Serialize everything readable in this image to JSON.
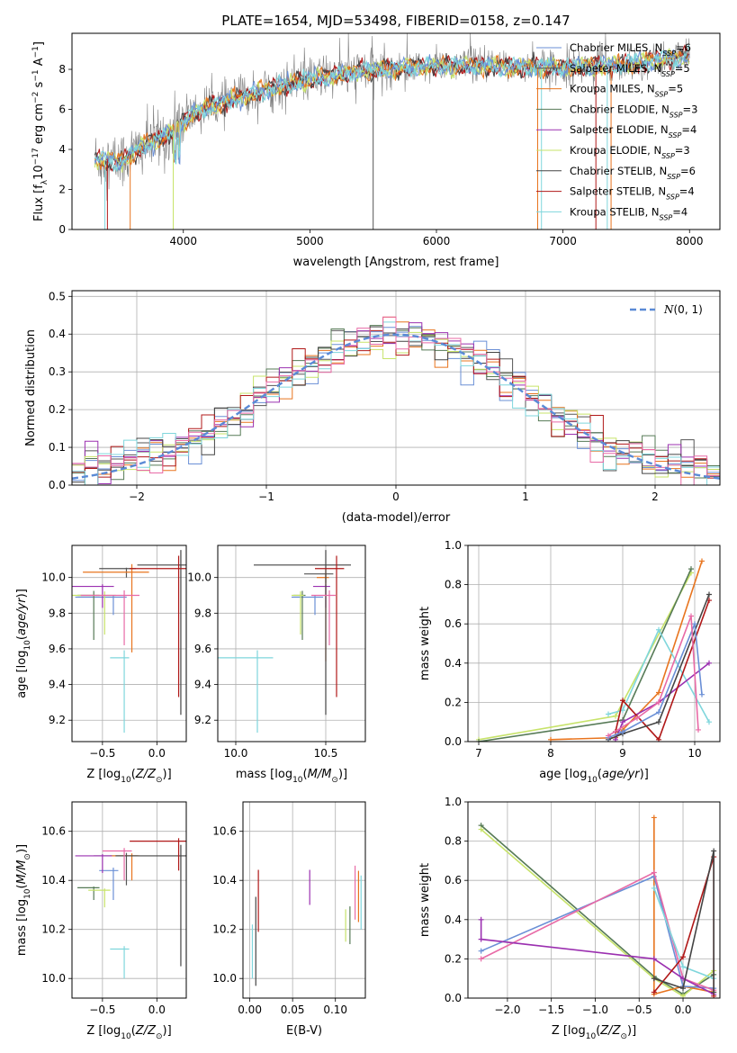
{
  "figure": {
    "title": "PLATE=1654, MJD=53498, FIBERID=0158, z=0.147"
  },
  "colors": {
    "Chabrier MILES": "#6a8fd6",
    "Salpeter MILES": "#555555",
    "Kroupa MILES": "#e8741e",
    "Chabrier ELODIE": "#567a56",
    "Salpeter ELODIE": "#9b30b0",
    "Kroupa ELODIE": "#c7e36a",
    "Chabrier STELIB": "#444444",
    "Salpeter STELIB": "#b01818",
    "Kroupa STELIB": "#7fd6dc",
    "Pink": "#e86aa6",
    "Gauss": "#5a8ad6"
  },
  "chart_data": [
    {
      "id": "spectrum",
      "type": "line",
      "xlabel": "wavelength [Angstrom, rest frame]",
      "ylabel": "Flux [f_λ 10^-17 erg cm^-2 s^-1 A^-1]",
      "xlim": [
        3120,
        8240
      ],
      "ylim": [
        0,
        9.8
      ],
      "xticks": [
        4000,
        5000,
        6000,
        7000,
        8000
      ],
      "yticks": [
        0,
        2,
        4,
        6,
        8
      ],
      "legend_position": "upper-right",
      "legend": [
        {
          "name": "Chabrier MILES, N_SSP=6"
        },
        {
          "name": "Salpeter MILES, N_SSP=5"
        },
        {
          "name": "Kroupa MILES, N_SSP=5"
        },
        {
          "name": "Chabrier ELODIE, N_SSP=3"
        },
        {
          "name": "Salpeter ELODIE, N_SSP=4"
        },
        {
          "name": "Kroupa ELODIE, N_SSP=3"
        },
        {
          "name": "Chabrier STELIB, N_SSP=6"
        },
        {
          "name": "Salpeter STELIB, N_SSP=4"
        },
        {
          "name": "Kroupa STELIB, N_SSP=4"
        }
      ],
      "model_trend": {
        "x": [
          3300,
          3500,
          3700,
          3900,
          4100,
          4300,
          4600,
          5000,
          5400,
          5800,
          6200,
          6600,
          7000,
          7400,
          7800,
          8000
        ],
        "y": [
          3.5,
          3.4,
          4.2,
          4.8,
          5.9,
          6.3,
          6.9,
          7.5,
          7.9,
          8.1,
          8.2,
          8.1,
          8.1,
          8.2,
          8.5,
          8.6
        ]
      }
    },
    {
      "id": "residuals",
      "type": "histogram",
      "xlabel": "(data-model)/error",
      "ylabel": "Normed distribution",
      "xlim": [
        -2.5,
        2.5
      ],
      "ylim": [
        0,
        0.515
      ],
      "xticks": [
        -2,
        -1,
        0,
        1,
        2
      ],
      "yticks": [
        0.0,
        0.1,
        0.2,
        0.3,
        0.4,
        0.5
      ],
      "grid": true,
      "legend": [
        {
          "name": "N(0,1)"
        }
      ],
      "legend_position": "upper-right"
    },
    {
      "id": "age-vs-Z",
      "type": "errorbar",
      "xlabel": "Z [log10(Z/Z_sun)]",
      "ylabel": "age  [log10(age/yr)]",
      "xlim": [
        -0.78,
        0.27
      ],
      "ylim": [
        9.08,
        10.18
      ],
      "xticks": [
        -0.5,
        0.0
      ],
      "yticks": [
        9.2,
        9.4,
        9.6,
        9.8,
        10.0
      ],
      "grid": true,
      "points": [
        {
          "series": "Chabrier MILES",
          "x": -0.4,
          "xerr": 0.35,
          "y": 9.89,
          "yerr": 0.1
        },
        {
          "series": "Salpeter MILES",
          "x": -0.28,
          "xerr": 0.25,
          "y": 10.05,
          "yerr": 0.05
        },
        {
          "series": "Kroupa MILES",
          "x": -0.23,
          "xerr": 0.45,
          "y": 10.03,
          "yerr": 0.45
        },
        {
          "series": "Chabrier ELODIE",
          "x": -0.58,
          "xerr": 0.15,
          "y": 9.9,
          "yerr": 0.25
        },
        {
          "series": "Salpeter ELODIE",
          "x": -0.5,
          "xerr": 0.3,
          "y": 9.95,
          "yerr": 0.12
        },
        {
          "series": "Kroupa ELODIE",
          "x": -0.48,
          "xerr": 0.3,
          "y": 9.9,
          "yerr": 0.22
        },
        {
          "series": "Chabrier STELIB",
          "x": 0.22,
          "xerr": 0.4,
          "y": 10.07,
          "yerr": 0.84
        },
        {
          "series": "Salpeter STELIB",
          "x": 0.2,
          "xerr": 0.45,
          "y": 10.05,
          "yerr": 0.72
        },
        {
          "series": "Kroupa STELIB",
          "x": -0.3,
          "xerr": 0.13,
          "y": 9.55,
          "yerr": 0.42
        },
        {
          "series": "Pink",
          "x": -0.3,
          "xerr": 0.4,
          "y": 9.9,
          "yerr": 0.28
        }
      ]
    },
    {
      "id": "age-vs-mass",
      "type": "errorbar",
      "xlabel": "mass [log10(M/M_sun)]",
      "ylabel": "",
      "xlim": [
        9.9,
        10.72
      ],
      "ylim": [
        9.08,
        10.18
      ],
      "xticks": [
        10.0,
        10.5
      ],
      "yticks": [
        9.2,
        9.4,
        9.6,
        9.8,
        10.0
      ],
      "grid": true,
      "points": [
        {
          "series": "Chabrier MILES",
          "x": 10.44,
          "xerr": 0.13,
          "y": 9.89,
          "yerr": 0.1
        },
        {
          "series": "Salpeter MILES",
          "x": 10.5,
          "xerr": 0.12,
          "y": 10.02,
          "yerr": 0.05
        },
        {
          "series": "Kroupa MILES",
          "x": 10.5,
          "xerr": 0.05,
          "y": 10.0,
          "yerr": 0.47
        },
        {
          "series": "Chabrier ELODIE",
          "x": 10.37,
          "xerr": 0.05,
          "y": 9.9,
          "yerr": 0.25
        },
        {
          "series": "Salpeter ELODIE",
          "x": 10.5,
          "xerr": 0.07,
          "y": 9.95,
          "yerr": 0.12
        },
        {
          "series": "Kroupa ELODIE",
          "x": 10.36,
          "xerr": 0.05,
          "y": 9.9,
          "yerr": 0.22
        },
        {
          "series": "Chabrier STELIB",
          "x": 10.5,
          "xerr": 0.4,
          "y": 10.07,
          "yerr": 0.84
        },
        {
          "series": "Salpeter STELIB",
          "x": 10.56,
          "xerr": 0.12,
          "y": 10.05,
          "yerr": 0.72
        },
        {
          "series": "Kroupa STELIB",
          "x": 10.12,
          "xerr": 0.25,
          "y": 9.55,
          "yerr": 0.42
        },
        {
          "series": "Pink",
          "x": 10.52,
          "xerr": 0.1,
          "y": 9.9,
          "yerr": 0.28
        }
      ]
    },
    {
      "id": "massweight-vs-age",
      "type": "line",
      "xlabel": "age  [log10(age/yr)]",
      "ylabel": "mass weight",
      "xlim": [
        6.85,
        10.35
      ],
      "ylim": [
        0,
        1.0
      ],
      "xticks": [
        7,
        8,
        9,
        10
      ],
      "yticks": [
        0.0,
        0.2,
        0.4,
        0.6,
        0.8,
        1.0
      ],
      "grid": true,
      "series": [
        {
          "series": "Kroupa ELODIE",
          "x": [
            7.0,
            8.9,
            9.95
          ],
          "y": [
            0.01,
            0.13,
            0.86
          ]
        },
        {
          "series": "Chabrier ELODIE",
          "x": [
            7.0,
            9.0,
            9.95
          ],
          "y": [
            0.0,
            0.11,
            0.88
          ]
        },
        {
          "series": "Kroupa MILES",
          "x": [
            8.0,
            8.9,
            9.0,
            9.5,
            10.1
          ],
          "y": [
            0.01,
            0.02,
            0.06,
            0.25,
            0.92
          ]
        },
        {
          "series": "Kroupa STELIB",
          "x": [
            8.8,
            9.0,
            9.5,
            10.2
          ],
          "y": [
            0.14,
            0.16,
            0.57,
            0.1
          ]
        },
        {
          "series": "Salpeter ELODIE",
          "x": [
            8.9,
            9.0,
            9.5,
            10.2
          ],
          "y": [
            0.01,
            0.1,
            0.2,
            0.4
          ]
        },
        {
          "series": "Salpeter STELIB",
          "x": [
            8.9,
            9.0,
            9.5,
            10.2
          ],
          "y": [
            0.05,
            0.21,
            0.01,
            0.72
          ]
        },
        {
          "series": "Chabrier STELIB",
          "x": [
            8.8,
            9.0,
            9.5,
            10.2
          ],
          "y": [
            0.01,
            0.04,
            0.1,
            0.75
          ]
        },
        {
          "series": "Chabrier MILES",
          "x": [
            8.8,
            9.0,
            9.5,
            10.0,
            10.1
          ],
          "y": [
            0.02,
            0.05,
            0.15,
            0.6,
            0.24
          ]
        },
        {
          "series": "Pink",
          "x": [
            8.8,
            9.2,
            9.5,
            9.95,
            10.05
          ],
          "y": [
            0.03,
            0.12,
            0.2,
            0.64,
            0.06
          ]
        }
      ]
    },
    {
      "id": "mass-vs-Z",
      "type": "errorbar",
      "xlabel": "Z [log10(Z/Z_sun)]",
      "ylabel": "mass [log10(M/M_sun)]",
      "xlim": [
        -0.78,
        0.27
      ],
      "ylim": [
        9.92,
        10.72
      ],
      "xticks": [
        -0.5,
        0.0
      ],
      "yticks": [
        10.0,
        10.2,
        10.4,
        10.6
      ],
      "grid": true,
      "points": [
        {
          "series": "Chabrier MILES",
          "x": -0.4,
          "xerr": 0.13,
          "y": 10.44,
          "yerr": 0.12
        },
        {
          "series": "Salpeter MILES",
          "x": -0.28,
          "xerr": 0.3,
          "y": 10.5,
          "yerr": 0.12
        },
        {
          "series": "Kroupa MILES",
          "x": -0.23,
          "xerr": 0.2,
          "y": 10.5,
          "yerr": 0.1
        },
        {
          "series": "Chabrier ELODIE",
          "x": -0.58,
          "xerr": 0.15,
          "y": 10.37,
          "yerr": 0.05
        },
        {
          "series": "Salpeter ELODIE",
          "x": -0.5,
          "xerr": 0.25,
          "y": 10.5,
          "yerr": 0.07
        },
        {
          "series": "Kroupa ELODIE",
          "x": -0.48,
          "xerr": 0.15,
          "y": 10.36,
          "yerr": 0.07
        },
        {
          "series": "Chabrier STELIB",
          "x": 0.22,
          "xerr": 0.6,
          "y": 10.5,
          "yerr": 0.45
        },
        {
          "series": "Salpeter STELIB",
          "x": 0.2,
          "xerr": 0.45,
          "y": 10.56,
          "yerr": 0.12
        },
        {
          "series": "Kroupa STELIB",
          "x": -0.3,
          "xerr": 0.13,
          "y": 10.12,
          "yerr": 0.12
        },
        {
          "series": "Pink",
          "x": -0.3,
          "xerr": 0.2,
          "y": 10.52,
          "yerr": 0.12
        }
      ]
    },
    {
      "id": "mass-vs-ebv",
      "type": "errorbar",
      "xlabel": "E(B-V)",
      "ylabel": "",
      "xlim": [
        -0.008,
        0.135
      ],
      "ylim": [
        9.92,
        10.72
      ],
      "xticks": [
        0.0,
        0.05,
        0.1
      ],
      "yticks": [
        10.0,
        10.2,
        10.4,
        10.6
      ],
      "grid": true,
      "points": [
        {
          "series": "Kroupa STELIB",
          "x": 0.003,
          "y": 10.2,
          "yerr": 0.2
        },
        {
          "series": "Chabrier STELIB",
          "x": 0.007,
          "y": 10.3,
          "yerr": 0.33
        },
        {
          "series": "Salpeter STELIB",
          "x": 0.01,
          "y": 10.42,
          "yerr": 0.23
        },
        {
          "series": "Salpeter ELODIE",
          "x": 0.07,
          "y": 10.43,
          "yerr": 0.13
        },
        {
          "series": "Kroupa ELODIE",
          "x": 0.112,
          "y": 10.27,
          "yerr": 0.12
        },
        {
          "series": "Chabrier ELODIE",
          "x": 0.117,
          "y": 10.28,
          "yerr": 0.14
        },
        {
          "series": "Pink",
          "x": 0.123,
          "y": 10.44,
          "yerr": 0.2
        },
        {
          "series": "Kroupa MILES",
          "x": 0.127,
          "y": 10.42,
          "yerr": 0.19
        },
        {
          "series": "Kroupa STELIB",
          "x": 0.13,
          "y": 10.4,
          "yerr": 0.2
        }
      ]
    },
    {
      "id": "massweight-vs-Z",
      "type": "line",
      "xlabel": "Z [log10(Z/Z_sun)]",
      "ylabel": "mass weight",
      "xlim": [
        -2.45,
        0.42
      ],
      "ylim": [
        0,
        1.0
      ],
      "xticks": [
        -2.0,
        -1.5,
        -1.0,
        -0.5,
        0.0
      ],
      "yticks": [
        0.0,
        0.2,
        0.4,
        0.6,
        0.8,
        1.0
      ],
      "grid": true,
      "series": [
        {
          "series": "Chabrier ELODIE",
          "x": [
            -2.3,
            -0.33,
            0.0,
            0.35
          ],
          "y": [
            0.88,
            0.11,
            0.02,
            0.12
          ]
        },
        {
          "series": "Kroupa ELODIE",
          "x": [
            -2.3,
            -0.33,
            0.0,
            0.35
          ],
          "y": [
            0.86,
            0.1,
            0.01,
            0.14
          ]
        },
        {
          "series": "Kroupa MILES",
          "x": [
            -0.33,
            -0.33,
            0.0,
            0.35
          ],
          "y": [
            0.92,
            0.02,
            0.06,
            0.03
          ]
        },
        {
          "series": "Chabrier MILES",
          "x": [
            -2.3,
            -0.33,
            0.0,
            0.35
          ],
          "y": [
            0.24,
            0.62,
            0.06,
            0.05
          ]
        },
        {
          "series": "Pink",
          "x": [
            -2.3,
            -0.33,
            0.0,
            0.35
          ],
          "y": [
            0.2,
            0.64,
            0.1,
            0.04
          ]
        },
        {
          "series": "Salpeter ELODIE",
          "x": [
            -2.3,
            -2.3,
            -0.33,
            0.0,
            0.35
          ],
          "y": [
            0.4,
            0.3,
            0.2,
            0.1,
            0.02
          ]
        },
        {
          "series": "Kroupa STELIB",
          "x": [
            -0.33,
            0.0,
            0.35
          ],
          "y": [
            0.56,
            0.16,
            0.1
          ]
        },
        {
          "series": "Salpeter STELIB",
          "x": [
            -0.33,
            0.0,
            0.35,
            0.35
          ],
          "y": [
            0.03,
            0.21,
            0.72,
            0.01
          ]
        },
        {
          "series": "Chabrier STELIB",
          "x": [
            -0.33,
            0.0,
            0.35,
            0.35
          ],
          "y": [
            0.1,
            0.05,
            0.75,
            0.03
          ]
        }
      ]
    }
  ]
}
